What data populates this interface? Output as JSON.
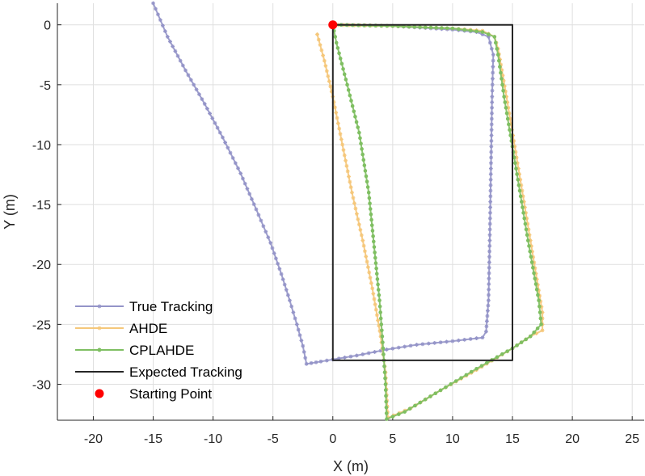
{
  "chart_data": {
    "type": "line",
    "title": "",
    "xlabel": "X (m)",
    "ylabel": "Y (m)",
    "xlim": [
      -23,
      26
    ],
    "ylim": [
      -33,
      1.8
    ],
    "xticks": [
      -20,
      -15,
      -10,
      -5,
      0,
      5,
      10,
      15,
      20,
      25
    ],
    "yticks": [
      0,
      -5,
      -10,
      -15,
      -20,
      -25,
      -30
    ],
    "grid": true,
    "legend_position": "bottom-left",
    "series": [
      {
        "name": "True Tracking",
        "color": "#9494c8",
        "marker": "star",
        "points": [
          [
            -15.0,
            1.8
          ],
          [
            -13.8,
            -1.0
          ],
          [
            -12.3,
            -3.8
          ],
          [
            -10.7,
            -6.6
          ],
          [
            -9.2,
            -9.4
          ],
          [
            -7.7,
            -12.4
          ],
          [
            -6.4,
            -15.4
          ],
          [
            -5.2,
            -18.2
          ],
          [
            -4.3,
            -20.8
          ],
          [
            -3.6,
            -23.0
          ],
          [
            -3.0,
            -25.0
          ],
          [
            -2.5,
            -26.8
          ],
          [
            -2.2,
            -28.3
          ],
          [
            -1.0,
            -28.1
          ],
          [
            2.0,
            -27.6
          ],
          [
            4.5,
            -27.1
          ],
          [
            7.0,
            -26.7
          ],
          [
            10.0,
            -26.4
          ],
          [
            12.5,
            -26.1
          ],
          [
            12.8,
            -25.6
          ],
          [
            13.0,
            -23.0
          ],
          [
            13.1,
            -18.0
          ],
          [
            13.2,
            -12.0
          ],
          [
            13.3,
            -6.0
          ],
          [
            13.4,
            -2.5
          ],
          [
            13.0,
            -1.0
          ],
          [
            12.0,
            -0.6
          ],
          [
            10.0,
            -0.4
          ],
          [
            5.0,
            -0.1
          ],
          [
            0.3,
            0.0
          ]
        ]
      },
      {
        "name": "AHDE",
        "color": "#f5c77a",
        "marker": "star",
        "points": [
          [
            -1.3,
            -0.8
          ],
          [
            -0.7,
            -3.0
          ],
          [
            0.0,
            -6.0
          ],
          [
            0.8,
            -10.0
          ],
          [
            1.6,
            -14.0
          ],
          [
            2.5,
            -18.0
          ],
          [
            3.3,
            -22.0
          ],
          [
            4.0,
            -26.0
          ],
          [
            4.4,
            -29.0
          ],
          [
            4.6,
            -32.8
          ],
          [
            6.5,
            -32.0
          ],
          [
            9.0,
            -30.5
          ],
          [
            12.0,
            -28.8
          ],
          [
            15.0,
            -27.0
          ],
          [
            16.5,
            -26.0
          ],
          [
            17.5,
            -25.5
          ],
          [
            17.5,
            -24.0
          ],
          [
            16.5,
            -18.0
          ],
          [
            15.5,
            -12.0
          ],
          [
            14.5,
            -6.0
          ],
          [
            13.8,
            -2.0
          ],
          [
            13.5,
            -1.0
          ],
          [
            12.5,
            -0.5
          ],
          [
            10.0,
            -0.3
          ],
          [
            5.0,
            -0.1
          ],
          [
            0.0,
            0.0
          ]
        ]
      },
      {
        "name": "CPLAHDE",
        "color": "#7fbf62",
        "marker": "dot",
        "points": [
          [
            0.0,
            0.0
          ],
          [
            0.3,
            -1.5
          ],
          [
            1.2,
            -5.0
          ],
          [
            2.2,
            -9.0
          ],
          [
            3.0,
            -14.0
          ],
          [
            3.5,
            -19.0
          ],
          [
            3.9,
            -23.0
          ],
          [
            4.2,
            -27.0
          ],
          [
            4.4,
            -30.0
          ],
          [
            4.5,
            -32.9
          ],
          [
            6.0,
            -32.3
          ],
          [
            9.0,
            -30.5
          ],
          [
            12.0,
            -28.7
          ],
          [
            15.0,
            -27.0
          ],
          [
            16.5,
            -26.0
          ],
          [
            17.4,
            -25.0
          ],
          [
            17.2,
            -23.0
          ],
          [
            16.3,
            -18.0
          ],
          [
            15.3,
            -12.0
          ],
          [
            14.3,
            -6.0
          ],
          [
            13.8,
            -2.5
          ],
          [
            13.5,
            -1.0
          ],
          [
            12.5,
            -0.6
          ],
          [
            10.0,
            -0.3
          ],
          [
            5.0,
            -0.1
          ],
          [
            0.2,
            0.0
          ]
        ]
      },
      {
        "name": "Expected Tracking",
        "color": "#262626",
        "marker": "none",
        "points": [
          [
            0,
            0
          ],
          [
            15,
            0
          ],
          [
            15,
            -28
          ],
          [
            0,
            -28
          ],
          [
            0,
            0
          ]
        ]
      },
      {
        "name": "Starting Point",
        "color": "#ff0000",
        "marker": "dot",
        "points": [
          [
            0,
            0
          ]
        ]
      }
    ]
  }
}
